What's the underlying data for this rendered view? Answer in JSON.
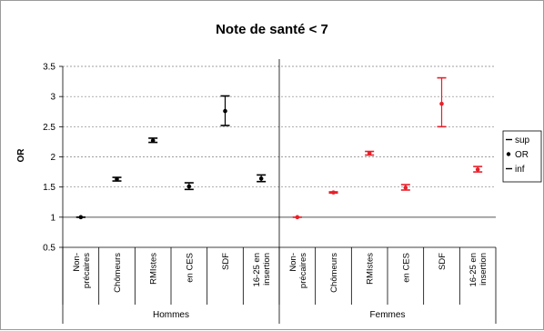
{
  "chart_data": {
    "type": "scatter",
    "title": "Note de santé < 7",
    "ylabel": "OR",
    "xlabel": "",
    "ylim": [
      0.5,
      3.5
    ],
    "yticks": [
      "0.5",
      "1",
      "1.5",
      "2",
      "2.5",
      "3",
      "3.5"
    ],
    "grid": true,
    "legend_position": "right",
    "legend": [
      {
        "key": "sup",
        "label": "sup",
        "marker": "dash"
      },
      {
        "key": "or",
        "label": "OR",
        "marker": "dot"
      },
      {
        "key": "inf",
        "label": "inf",
        "marker": "dash"
      }
    ],
    "groups": [
      {
        "name": "Hommes",
        "color": "#000000",
        "categories": [
          "Non-précaires",
          "Chômeurs",
          "RMIstes",
          "en CES",
          "SDF",
          "16-25 en insertion"
        ],
        "or": [
          1.0,
          1.63,
          2.27,
          1.51,
          2.76,
          1.64
        ],
        "inf": [
          1.0,
          1.6,
          2.24,
          1.46,
          2.52,
          1.59
        ],
        "sup": [
          1.0,
          1.66,
          2.31,
          1.57,
          3.01,
          1.7
        ]
      },
      {
        "name": "Femmes",
        "color": "#e8202a",
        "categories": [
          "Non-précaires",
          "Chômeurs",
          "RMIstes",
          "en CES",
          "SDF",
          "16-25 en insertion"
        ],
        "or": [
          1.0,
          1.41,
          2.06,
          1.49,
          2.88,
          1.79
        ],
        "inf": [
          1.0,
          1.4,
          2.03,
          1.45,
          2.5,
          1.75
        ],
        "sup": [
          1.0,
          1.42,
          2.09,
          1.54,
          3.31,
          1.84
        ]
      }
    ]
  },
  "colors": {
    "hommes": "#000000",
    "femmes": "#e8202a",
    "grid": "#808080",
    "axis": "#000000"
  }
}
